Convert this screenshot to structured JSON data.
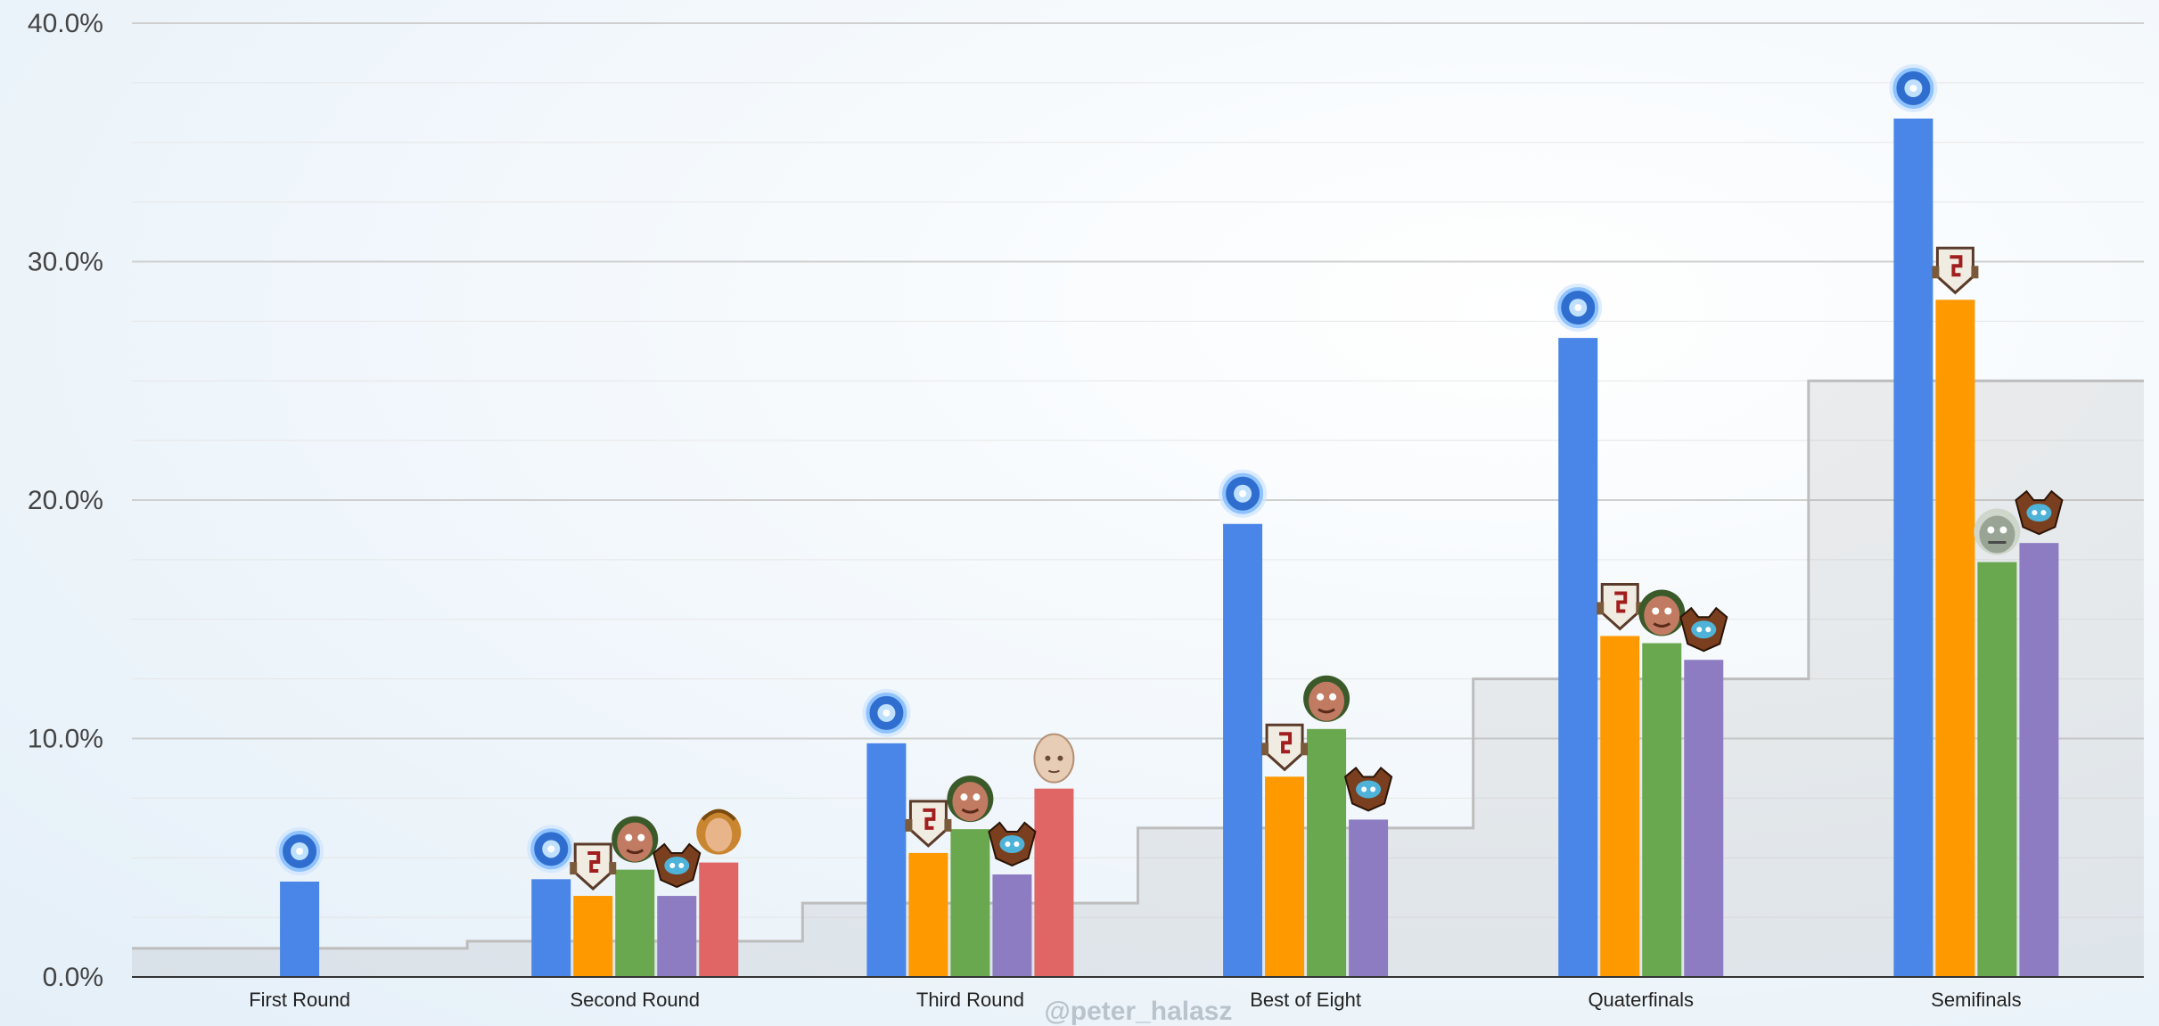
{
  "chart_data": {
    "type": "bar",
    "categories": [
      "First Round",
      "Second Round",
      "Third Round",
      "Best of Eight",
      "Quaterfinals",
      "Semifinals"
    ],
    "ylim": [
      0,
      40
    ],
    "yticks": [
      "0.0%",
      "10.0%",
      "20.0%",
      "30.0%",
      "40.0%"
    ],
    "ytick_values": [
      0,
      10,
      20,
      30,
      40
    ],
    "grid": true,
    "legend": "none",
    "series": [
      {
        "color": "#4a86e8",
        "icon": "blue-orb-icon",
        "values": [
          4.0,
          4.1,
          9.8,
          19.0,
          26.8,
          36.0
        ]
      },
      {
        "color": "#ff9900",
        "icon": "shield-hero-icon",
        "values": [
          null,
          3.4,
          5.2,
          8.4,
          14.3,
          28.4
        ]
      },
      {
        "color": "#6aa84f",
        "icon": "ogre-hero-icon",
        "values": [
          null,
          4.5,
          6.2,
          10.4,
          14.0,
          17.4
        ]
      },
      {
        "color": "#8e7cc3",
        "icon": "masked-hero-icon",
        "values": [
          null,
          3.4,
          4.3,
          6.6,
          13.3,
          18.2
        ]
      },
      {
        "color": "#e06666",
        "icon": "hooded-hero-icon",
        "values": [
          null,
          4.8,
          7.9,
          null,
          null,
          null
        ]
      }
    ],
    "semifinal_icons": [
      "blue-orb-icon",
      "shield-hero-icon",
      "troll-hero-icon",
      "masked-hero-icon"
    ],
    "third_round_red_icon": "bald-hero-icon",
    "background_step": {
      "color": "#bdbdbd",
      "values": [
        1.2,
        1.5,
        3.1,
        6.25,
        12.5,
        25.0
      ]
    },
    "annotation": "@peter_halasz"
  },
  "colors": {
    "gridline": "#d9d9d9",
    "axis": "#333333"
  }
}
